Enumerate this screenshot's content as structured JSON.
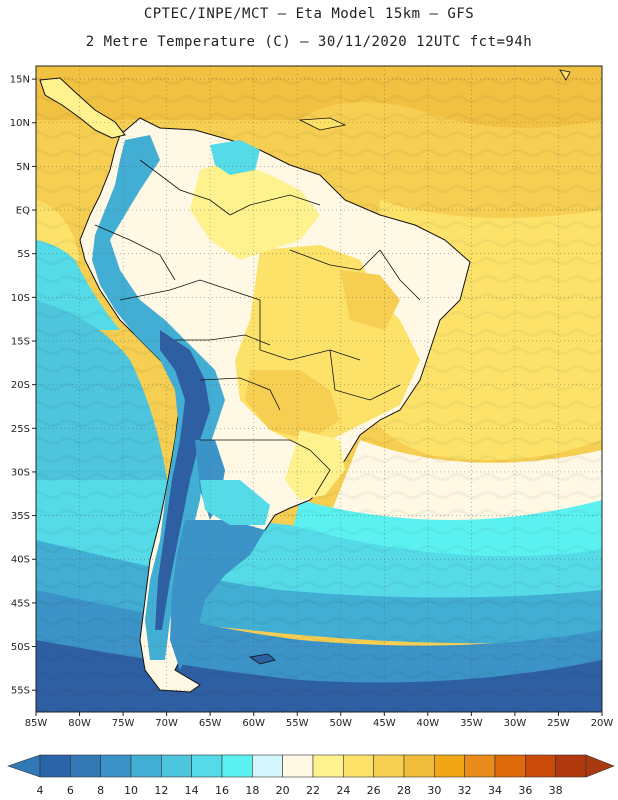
{
  "title_line1": "CPTEC/INPE/MCT –  Eta Model 15km – GFS",
  "title_line2": "2 Metre Temperature (C) – 30/11/2020 12UTC fct=94h",
  "map": {
    "lon_range": [
      -85,
      -20
    ],
    "lat_range": [
      -57.5,
      16.5
    ],
    "lon_ticks": [
      "85W",
      "80W",
      "75W",
      "70W",
      "65W",
      "60W",
      "55W",
      "50W",
      "45W",
      "40W",
      "35W",
      "30W",
      "25W",
      "20W"
    ],
    "lat_ticks": [
      "15N",
      "10N",
      "5N",
      "EQ",
      "5S",
      "10S",
      "15S",
      "20S",
      "25S",
      "30S",
      "35S",
      "40S",
      "45S",
      "50S",
      "55S"
    ],
    "gridlines": "dotted",
    "land_color_note": "temperature shaded"
  },
  "colorbar": {
    "labels": [
      "4",
      "6",
      "8",
      "10",
      "12",
      "14",
      "16",
      "18",
      "20",
      "22",
      "24",
      "26",
      "28",
      "30",
      "32",
      "34",
      "36",
      "38"
    ],
    "colors": [
      "#2a63a8",
      "#3479b5",
      "#3b93c7",
      "#43aed4",
      "#4dc5dd",
      "#55dbe7",
      "#5cf1f1",
      "#d2f6fb",
      "#fff8e4",
      "#fef28f",
      "#fde26a",
      "#f8d051",
      "#f0bd3a",
      "#f1a715",
      "#eb8b1c",
      "#de6a0b",
      "#c94a09",
      "#b0380d"
    ],
    "below_color": "#3179b6",
    "above_color": "#a93a10"
  },
  "palette": {
    "cold_deep": "#2f5fa3",
    "cold": "#3d94c7",
    "cool": "#47c3dc",
    "cyan": "#5ce9ee",
    "pale": "#fff7e3",
    "warm_light": "#fde68a",
    "warm": "#f6cf52",
    "hot": "#f0bb3c"
  }
}
